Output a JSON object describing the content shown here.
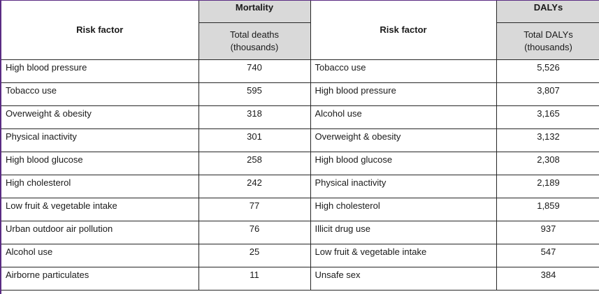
{
  "header": {
    "risk_factor_label": "Risk factor",
    "mortality_label": "Mortality",
    "mortality_sub_line1": "Total deaths",
    "mortality_sub_line2": "(thousands)",
    "dalys_label": "DALYs",
    "dalys_sub_line1": "Total DALYs",
    "dalys_sub_line2": "(thousands)"
  },
  "rows": [
    {
      "mortality_factor": "High blood pressure",
      "deaths": "740",
      "dalys_factor": "Tobacco use",
      "dalys": "5,526"
    },
    {
      "mortality_factor": "Tobacco use",
      "deaths": "595",
      "dalys_factor": "High blood pressure",
      "dalys": "3,807"
    },
    {
      "mortality_factor": "Overweight & obesity",
      "deaths": "318",
      "dalys_factor": "Alcohol use",
      "dalys": "3,165"
    },
    {
      "mortality_factor": "Physical inactivity",
      "deaths": "301",
      "dalys_factor": "Overweight & obesity",
      "dalys": "3,132"
    },
    {
      "mortality_factor": "High blood glucose",
      "deaths": "258",
      "dalys_factor": "High blood glucose",
      "dalys": "2,308"
    },
    {
      "mortality_factor": "High cholesterol",
      "deaths": "242",
      "dalys_factor": "Physical inactivity",
      "dalys": "2,189"
    },
    {
      "mortality_factor": "Low fruit & vegetable intake",
      "deaths": "77",
      "dalys_factor": "High cholesterol",
      "dalys": "1,859"
    },
    {
      "mortality_factor": "Urban outdoor air pollution",
      "deaths": "76",
      "dalys_factor": "Illicit drug use",
      "dalys": "937"
    },
    {
      "mortality_factor": "Alcohol use",
      "deaths": "25",
      "dalys_factor": "Low fruit & vegetable intake",
      "dalys": "547"
    },
    {
      "mortality_factor": "Airborne particulates",
      "deaths": "11",
      "dalys_factor": "Unsafe sex",
      "dalys": "384"
    }
  ],
  "colors": {
    "header_fill": "#d9d9d9",
    "grid_line": "#262626",
    "frame_accent": "#5b2c83"
  }
}
